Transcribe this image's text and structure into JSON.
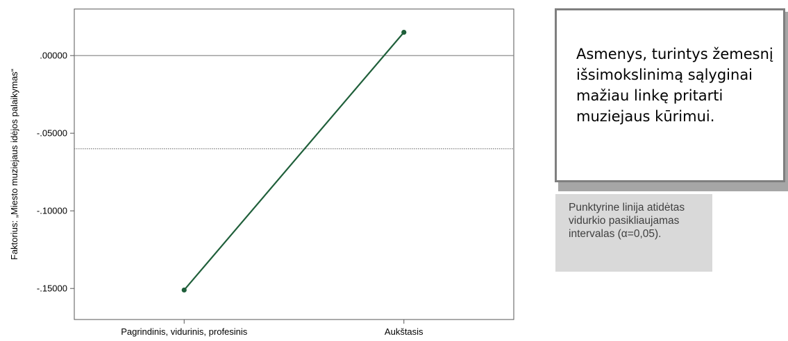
{
  "chart_data": {
    "type": "line",
    "categories": [
      "Pagrindinis, vidurinis, profesinis",
      "Aukštasis"
    ],
    "series": [
      {
        "values": [
          -0.151,
          0.015
        ],
        "color": "#1f5f3a"
      }
    ],
    "ylabel": "Faktorius: „Miesto muziejaus idėjos palaikymas“",
    "yticks": [
      0,
      -0.05,
      -0.1,
      -0.15
    ],
    "ytick_labels": [
      ".00000",
      "-.05000",
      "-.10000",
      "-.15000"
    ],
    "ylim": [
      -0.17,
      0.03
    ],
    "reference_lines": [
      {
        "value": 0.0,
        "style": "solid",
        "color": "#808080"
      },
      {
        "value": -0.06,
        "style": "dotted",
        "color": "#808080"
      }
    ],
    "grid": false
  },
  "callout": {
    "text": "Asmenys, turintys žemesnį išsimokslinimą sąlyginai mažiau linkę pritarti muziejaus kūrimui."
  },
  "note": {
    "text": "Punktyrine linija atidėtas vidurkio pasikliaujamas intervalas (α=0,05)."
  }
}
